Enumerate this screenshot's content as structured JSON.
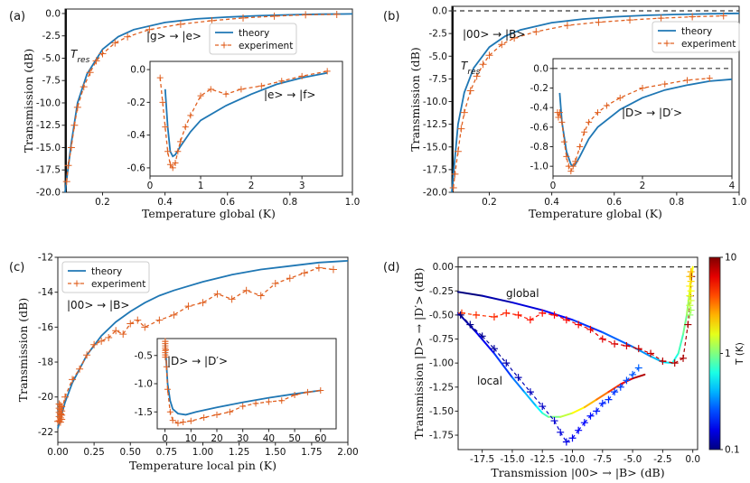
{
  "chart_data": [
    {
      "type": "line",
      "panel_label": "(a)",
      "xlabel": "Temperature global (K)",
      "ylabel": "Transmission (dB)",
      "xlim": [
        0.08,
        1.0
      ],
      "ylim": [
        -20.0,
        0.5
      ],
      "xticks": [
        "0.2",
        "0.4",
        "0.6",
        "0.8",
        "1.0"
      ],
      "yticks": [
        "0.0",
        "-2.5",
        "-5.0",
        "-7.5",
        "-10.0",
        "-12.5",
        "-15.0",
        "-17.5",
        "-20.0"
      ],
      "annotations": [
        "T_res",
        "|g> → |e>"
      ],
      "legend": {
        "placement": "top-right",
        "entries": [
          "theory",
          "experiment"
        ]
      },
      "series": [
        {
          "name": "theory",
          "style": "solid",
          "color": "#1f77b4",
          "x": [
            0.08,
            0.1,
            0.12,
            0.15,
            0.2,
            0.25,
            0.3,
            0.4,
            0.5,
            0.6,
            0.7,
            0.8,
            0.9,
            1.0
          ],
          "y": [
            -20.0,
            -14.5,
            -10.0,
            -6.8,
            -4.0,
            -2.6,
            -1.8,
            -1.0,
            -0.6,
            -0.4,
            -0.25,
            -0.15,
            -0.08,
            -0.05
          ]
        },
        {
          "name": "experiment",
          "style": "dashed-markers",
          "color": "#e06020",
          "x": [
            0.085,
            0.09,
            0.1,
            0.11,
            0.12,
            0.14,
            0.16,
            0.18,
            0.2,
            0.24,
            0.28,
            0.35,
            0.45,
            0.55,
            0.65,
            0.75,
            0.85,
            0.95
          ],
          "y": [
            -18.8,
            -17.0,
            -15.0,
            -12.5,
            -10.5,
            -8.2,
            -6.6,
            -5.3,
            -4.5,
            -3.3,
            -2.6,
            -1.8,
            -1.2,
            -0.8,
            -0.5,
            -0.3,
            -0.15,
            -0.1
          ]
        }
      ],
      "inset": {
        "annotation": "|e> → |f>",
        "xlim": [
          0.0,
          3.8
        ],
        "ylim": [
          -0.65,
          0.05
        ],
        "xticks": [
          "0",
          "1",
          "2",
          "3"
        ],
        "yticks": [
          "0.0",
          "-0.2",
          "-0.4",
          "-0.6"
        ],
        "series": [
          {
            "name": "theory",
            "x": [
              0.3,
              0.35,
              0.4,
              0.45,
              0.5,
              0.6,
              0.8,
              1.0,
              1.5,
              2.0,
              2.5,
              3.0,
              3.5
            ],
            "y": [
              -0.12,
              -0.35,
              -0.5,
              -0.53,
              -0.52,
              -0.47,
              -0.38,
              -0.31,
              -0.22,
              -0.15,
              -0.09,
              -0.05,
              -0.02
            ]
          },
          {
            "name": "experiment",
            "x": [
              0.2,
              0.25,
              0.3,
              0.35,
              0.4,
              0.45,
              0.5,
              0.55,
              0.6,
              0.7,
              0.8,
              1.0,
              1.2,
              1.5,
              1.8,
              2.2,
              2.6,
              3.0,
              3.5
            ],
            "y": [
              -0.05,
              -0.2,
              -0.35,
              -0.5,
              -0.58,
              -0.6,
              -0.57,
              -0.5,
              -0.44,
              -0.35,
              -0.28,
              -0.16,
              -0.12,
              -0.15,
              -0.12,
              -0.1,
              -0.07,
              -0.04,
              -0.01
            ]
          }
        ]
      }
    },
    {
      "type": "line",
      "panel_label": "(b)",
      "xlabel": "Temperature global (K)",
      "ylabel": "Transmission (dB)",
      "xlim": [
        0.08,
        1.0
      ],
      "ylim": [
        -20.0,
        0.5
      ],
      "xticks": [
        "0.2",
        "0.4",
        "0.6",
        "0.8",
        "1.0"
      ],
      "yticks": [
        "0.0",
        "-2.5",
        "-5.0",
        "-7.5",
        "-10.0",
        "-12.5",
        "-15.0",
        "-17.5",
        "-20.0"
      ],
      "annotations": [
        "T_res",
        "|00> → |B>"
      ],
      "legend": {
        "placement": "top-right",
        "entries": [
          "theory",
          "experiment"
        ]
      },
      "series": [
        {
          "name": "theory",
          "style": "solid",
          "color": "#1f77b4",
          "x": [
            0.08,
            0.1,
            0.12,
            0.15,
            0.2,
            0.25,
            0.3,
            0.4,
            0.5,
            0.6,
            0.7,
            0.8,
            0.9,
            1.0
          ],
          "y": [
            -20.0,
            -12.5,
            -9.0,
            -6.3,
            -4.0,
            -2.8,
            -2.1,
            -1.3,
            -0.9,
            -0.65,
            -0.5,
            -0.4,
            -0.33,
            -0.28
          ]
        },
        {
          "name": "experiment",
          "style": "dashed-markers",
          "color": "#e06020",
          "x": [
            0.085,
            0.09,
            0.1,
            0.11,
            0.12,
            0.14,
            0.16,
            0.18,
            0.2,
            0.24,
            0.28,
            0.35,
            0.45,
            0.55,
            0.65,
            0.75,
            0.85,
            0.95
          ],
          "y": [
            -19.5,
            -18.0,
            -15.5,
            -13.0,
            -11.2,
            -8.8,
            -7.2,
            -5.9,
            -4.9,
            -3.7,
            -3.0,
            -2.3,
            -1.6,
            -1.25,
            -1.0,
            -0.8,
            -0.65,
            -0.55
          ]
        }
      ],
      "reference_line": 0.0,
      "inset": {
        "annotation": "|D> → |D′>",
        "xlim": [
          0.0,
          4.0
        ],
        "ylim": [
          -1.1,
          0.1
        ],
        "xticks": [
          "0",
          "2",
          "4"
        ],
        "yticks": [
          "0.0",
          "-0.2",
          "-0.4",
          "-0.6",
          "-0.8",
          "-1.0"
        ],
        "reference_line": 0.0,
        "series": [
          {
            "name": "theory",
            "x": [
              0.15,
              0.2,
              0.3,
              0.4,
              0.45,
              0.5,
              0.6,
              0.8,
              1.0,
              1.5,
              2.0,
              2.5,
              3.0,
              3.5,
              4.0
            ],
            "y": [
              -0.25,
              -0.55,
              -0.85,
              -0.98,
              -1.0,
              -0.98,
              -0.9,
              -0.72,
              -0.6,
              -0.42,
              -0.3,
              -0.22,
              -0.17,
              -0.13,
              -0.11
            ]
          },
          {
            "name": "experiment",
            "x": [
              0.1,
              0.12,
              0.15,
              0.2,
              0.25,
              0.3,
              0.35,
              0.4,
              0.45,
              0.5,
              0.6,
              0.7,
              0.8,
              1.0,
              1.2,
              1.5,
              2.0,
              2.5,
              3.0,
              3.5
            ],
            "y": [
              -0.45,
              -0.5,
              -0.45,
              -0.55,
              -0.75,
              -0.9,
              -1.0,
              -1.05,
              -1.0,
              -0.95,
              -0.8,
              -0.65,
              -0.55,
              -0.45,
              -0.38,
              -0.3,
              -0.2,
              -0.16,
              -0.12,
              -0.1
            ]
          }
        ]
      }
    },
    {
      "type": "line",
      "panel_label": "(c)",
      "xlabel": "Temperature local pin (K)",
      "ylabel": "Transmission (dB)",
      "xlim": [
        0.0,
        2.0
      ],
      "ylim": [
        -22.6,
        -12.0
      ],
      "xticks": [
        "0.00",
        "0.25",
        "0.50",
        "0.75",
        "1.00",
        "1.25",
        "1.50",
        "1.75",
        "2.00"
      ],
      "yticks": [
        "-12",
        "-14",
        "-16",
        "-18",
        "-20",
        "-22"
      ],
      "annotations": [
        "|00> → |B>"
      ],
      "legend": {
        "placement": "top-left",
        "entries": [
          "theory",
          "experiment"
        ]
      },
      "series": [
        {
          "name": "theory",
          "style": "solid",
          "color": "#1f77b4",
          "x": [
            0.0,
            0.05,
            0.1,
            0.2,
            0.3,
            0.4,
            0.5,
            0.6,
            0.7,
            0.8,
            1.0,
            1.2,
            1.4,
            1.6,
            1.8,
            2.0
          ],
          "y": [
            -21.8,
            -20.3,
            -19.2,
            -17.6,
            -16.5,
            -15.7,
            -15.1,
            -14.6,
            -14.2,
            -13.9,
            -13.4,
            -13.0,
            -12.7,
            -12.5,
            -12.3,
            -12.2
          ]
        },
        {
          "name": "experiment",
          "style": "dashed-markers",
          "color": "#e06020",
          "x": [
            0.0,
            0.02,
            0.05,
            0.1,
            0.15,
            0.2,
            0.25,
            0.3,
            0.35,
            0.4,
            0.45,
            0.5,
            0.55,
            0.6,
            0.7,
            0.8,
            0.9,
            1.0,
            1.1,
            1.2,
            1.3,
            1.4,
            1.5,
            1.6,
            1.7,
            1.8,
            1.9
          ],
          "y": [
            -21.4,
            -21.0,
            -20.0,
            -19.0,
            -18.4,
            -17.6,
            -17.0,
            -16.8,
            -16.6,
            -16.2,
            -16.4,
            -15.8,
            -15.6,
            -16.0,
            -15.6,
            -15.3,
            -14.8,
            -14.6,
            -14.1,
            -14.4,
            -13.9,
            -14.2,
            -13.5,
            -13.2,
            -12.9,
            -12.6,
            -12.7
          ]
        }
      ],
      "inset": {
        "annotation": "|D> → |D′>",
        "xlim": [
          -3.0,
          66.0
        ],
        "ylim": [
          -1.8,
          -0.2
        ],
        "xticks": [
          "0",
          "10",
          "20",
          "30",
          "40",
          "50",
          "60"
        ],
        "yticks": [
          "-0.5",
          "-1.0",
          "-1.5"
        ],
        "series": [
          {
            "name": "theory",
            "x": [
              0.1,
              0.5,
              1,
              2,
              3,
              5,
              8,
              12,
              20,
              30,
              40,
              50,
              60
            ],
            "y": [
              -0.3,
              -0.6,
              -1.0,
              -1.3,
              -1.45,
              -1.53,
              -1.55,
              -1.5,
              -1.42,
              -1.33,
              -1.25,
              -1.18,
              -1.12
            ]
          },
          {
            "name": "experiment",
            "x": [
              0.1,
              0.3,
              0.6,
              1,
              2,
              3,
              5,
              7,
              10,
              15,
              20,
              25,
              30,
              35,
              40,
              45,
              50,
              55,
              60
            ],
            "y": [
              -0.25,
              -0.4,
              -0.7,
              -1.1,
              -1.5,
              -1.65,
              -1.7,
              -1.68,
              -1.66,
              -1.6,
              -1.55,
              -1.5,
              -1.4,
              -1.35,
              -1.32,
              -1.3,
              -1.2,
              -1.15,
              -1.12
            ]
          }
        ]
      }
    },
    {
      "type": "scatter",
      "panel_label": "(d)",
      "xlabel": "Transmission |00> → |B> (dB)",
      "ylabel": "Transmission |D> → |D′> (dB)",
      "xlim": [
        -19.5,
        0.4
      ],
      "ylim": [
        -1.9,
        0.1
      ],
      "xticks": [
        "-17.5",
        "-15.0",
        "-12.5",
        "-10.0",
        "-7.5",
        "-5.0",
        "-2.5",
        "0.0"
      ],
      "yticks": [
        "0.00",
        "-0.25",
        "-0.50",
        "-0.75",
        "-1.00",
        "-1.25",
        "-1.50",
        "-1.75"
      ],
      "annotations": [
        "global",
        "local"
      ],
      "reference_line": 0.0,
      "colorbar": {
        "label": "T (K)",
        "scale": "log",
        "min": 0.1,
        "max": 10,
        "ticks": [
          "10",
          "1",
          "0.1"
        ]
      },
      "series": [
        {
          "name": "global theory",
          "x": [
            -19.5,
            -17.5,
            -15.0,
            -12.5,
            -10.0,
            -7.5,
            -5.0,
            -3.5,
            -2.5,
            -1.7,
            -1.2,
            -0.8,
            -0.5,
            -0.3,
            -0.1,
            0.0
          ],
          "y": [
            -0.26,
            -0.3,
            -0.37,
            -0.45,
            -0.55,
            -0.68,
            -0.83,
            -0.93,
            -0.99,
            -1.0,
            -0.9,
            -0.7,
            -0.5,
            -0.3,
            -0.1,
            0.0
          ]
        },
        {
          "name": "local theory",
          "x": [
            -19.5,
            -18.0,
            -16.5,
            -15.0,
            -14.0,
            -13.0,
            -12.5,
            -12.0,
            -11.0,
            -10.0,
            -9.0,
            -8.0,
            -7.0,
            -6.0,
            -5.0,
            -4.0
          ],
          "y": [
            -0.48,
            -0.68,
            -0.9,
            -1.15,
            -1.3,
            -1.45,
            -1.52,
            -1.56,
            -1.56,
            -1.52,
            -1.46,
            -1.38,
            -1.3,
            -1.22,
            -1.16,
            -1.12
          ]
        },
        {
          "name": "global experiment",
          "x": [
            -19.2,
            -18.0,
            -16.5,
            -15.5,
            -14.5,
            -13.5,
            -12.5,
            -11.5,
            -10.5,
            -9.5,
            -8.5,
            -7.5,
            -6.5,
            -5.5,
            -4.5,
            -3.5,
            -2.5,
            -1.5,
            -0.8,
            -0.4,
            -0.2,
            -0.1
          ],
          "y": [
            -0.48,
            -0.5,
            -0.52,
            -0.48,
            -0.5,
            -0.55,
            -0.48,
            -0.5,
            -0.55,
            -0.6,
            -0.65,
            -0.75,
            -0.8,
            -0.82,
            -0.85,
            -0.9,
            -0.98,
            -1.0,
            -0.95,
            -0.6,
            -0.3,
            -0.1
          ]
        },
        {
          "name": "local experiment",
          "x": [
            -19.3,
            -18.5,
            -17.5,
            -16.5,
            -15.5,
            -14.5,
            -13.5,
            -12.5,
            -11.5,
            -11.0,
            -10.5,
            -10.0,
            -9.5,
            -9.0,
            -8.5,
            -8.0,
            -7.5,
            -7.0,
            -6.5,
            -6.0,
            -5.5,
            -5.0,
            -4.5
          ],
          "y": [
            -0.5,
            -0.6,
            -0.72,
            -0.85,
            -1.0,
            -1.15,
            -1.3,
            -1.45,
            -1.6,
            -1.72,
            -1.82,
            -1.78,
            -1.7,
            -1.62,
            -1.55,
            -1.5,
            -1.42,
            -1.38,
            -1.3,
            -1.25,
            -1.18,
            -1.12,
            -1.05
          ]
        }
      ]
    }
  ]
}
